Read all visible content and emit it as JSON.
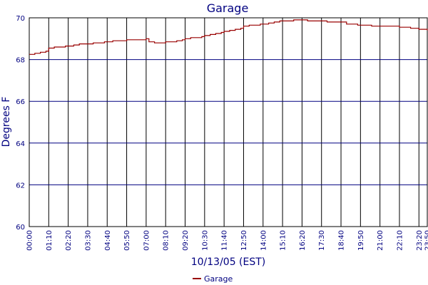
{
  "chart_data": {
    "type": "line",
    "title": "Garage",
    "xlabel": "10/13/05 (EST)",
    "ylabel": "Degrees F",
    "xlim": [
      "00:00",
      "23:50"
    ],
    "ylim": [
      60,
      70
    ],
    "grid": true,
    "legend": "bottom-center",
    "x_ticks": [
      "00:00",
      "01:10",
      "02:20",
      "03:30",
      "04:40",
      "05:50",
      "07:00",
      "08:10",
      "09:20",
      "10:30",
      "11:40",
      "12:50",
      "14:00",
      "15:10",
      "16:20",
      "17:30",
      "18:40",
      "19:50",
      "21:00",
      "22:10",
      "23:20",
      "23:50"
    ],
    "y_ticks": [
      60,
      62,
      64,
      66,
      68,
      70
    ],
    "series": [
      {
        "name": "Garage",
        "color": "#990000",
        "x": [
          "00:00",
          "00:20",
          "00:40",
          "01:00",
          "01:10",
          "01:30",
          "01:50",
          "02:10",
          "02:20",
          "02:40",
          "03:00",
          "03:20",
          "03:30",
          "03:50",
          "04:10",
          "04:30",
          "04:40",
          "05:00",
          "05:20",
          "05:40",
          "05:50",
          "06:10",
          "06:30",
          "06:50",
          "07:00",
          "07:10",
          "07:30",
          "07:50",
          "08:10",
          "08:30",
          "08:50",
          "09:10",
          "09:20",
          "09:40",
          "10:00",
          "10:20",
          "10:30",
          "10:50",
          "11:10",
          "11:30",
          "11:40",
          "12:00",
          "12:20",
          "12:40",
          "12:50",
          "13:10",
          "13:30",
          "13:50",
          "14:00",
          "14:20",
          "14:40",
          "15:00",
          "15:10",
          "15:30",
          "15:50",
          "16:10",
          "16:20",
          "16:40",
          "17:00",
          "17:20",
          "17:30",
          "17:50",
          "18:10",
          "18:30",
          "18:40",
          "19:00",
          "19:20",
          "19:40",
          "19:50",
          "20:10",
          "20:30",
          "20:50",
          "21:00",
          "21:20",
          "21:40",
          "22:00",
          "22:10",
          "22:30",
          "22:50",
          "23:10",
          "23:20",
          "23:40",
          "23:50"
        ],
        "y": [
          68.25,
          68.3,
          68.35,
          68.4,
          68.55,
          68.6,
          68.6,
          68.65,
          68.65,
          68.7,
          68.75,
          68.75,
          68.75,
          68.8,
          68.8,
          68.85,
          68.85,
          68.9,
          68.9,
          68.9,
          68.95,
          68.95,
          68.95,
          68.95,
          69.0,
          68.85,
          68.8,
          68.8,
          68.85,
          68.85,
          68.9,
          68.95,
          69.0,
          69.05,
          69.05,
          69.1,
          69.15,
          69.2,
          69.25,
          69.3,
          69.35,
          69.4,
          69.45,
          69.5,
          69.6,
          69.65,
          69.65,
          69.7,
          69.7,
          69.75,
          69.8,
          69.85,
          69.85,
          69.85,
          69.9,
          69.9,
          69.9,
          69.85,
          69.85,
          69.85,
          69.85,
          69.8,
          69.8,
          69.8,
          69.8,
          69.7,
          69.7,
          69.65,
          69.65,
          69.65,
          69.6,
          69.6,
          69.6,
          69.6,
          69.6,
          69.6,
          69.55,
          69.55,
          69.5,
          69.5,
          69.45,
          69.45,
          69.4
        ]
      }
    ]
  }
}
